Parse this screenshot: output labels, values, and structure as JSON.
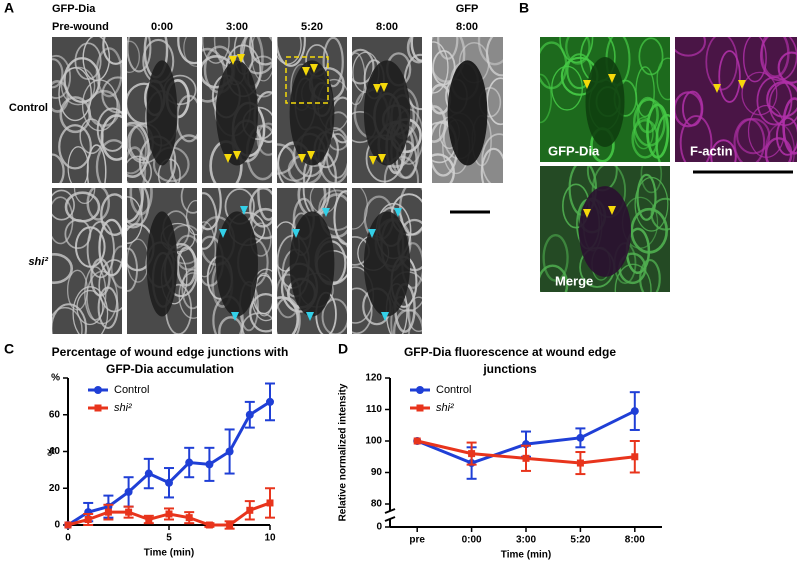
{
  "panel_a": {
    "letter": "A",
    "channel": "GFP-Dia",
    "columns": [
      "Pre-wound",
      "0:00",
      "3:00",
      "5:20",
      "8:00"
    ],
    "rows": [
      "Control",
      "shi²"
    ],
    "gfp_label": "GFP",
    "gfp_time": "8:00"
  },
  "panel_b": {
    "letter": "B",
    "labels": [
      "GFP-Dia",
      "F-actin",
      "Merge"
    ]
  },
  "chart_data": [
    {
      "type": "line",
      "panel_label": "C",
      "title": "Percentage of wound edge junctions with GFP-Dia accumulation",
      "x": [
        0,
        1,
        2,
        3,
        4,
        5,
        6,
        7,
        8,
        9,
        10
      ],
      "xlim": [
        0,
        10
      ],
      "xticks": [
        0,
        5,
        10
      ],
      "xlabel": "Time (min)",
      "ylabel": "%",
      "ylim": [
        0,
        80
      ],
      "yticks": [
        0,
        20,
        40,
        60,
        {
          "value": 80,
          "label": "%"
        }
      ],
      "legend": "upper left",
      "series": [
        {
          "name": "Control",
          "color": "#1f3fd6",
          "marker": "circle",
          "values": [
            0,
            7,
            10,
            18,
            28,
            23,
            34,
            33,
            40,
            60,
            67
          ],
          "errors": [
            0,
            5,
            6,
            8,
            8,
            8,
            8,
            9,
            12,
            7,
            10
          ]
        },
        {
          "name": "shi²",
          "color": "#e8341c",
          "marker": "square",
          "values": [
            0,
            3,
            7,
            7,
            3,
            6,
            4,
            0,
            0,
            8,
            12
          ],
          "errors": [
            0,
            3,
            4,
            3,
            2,
            3,
            3,
            1,
            2,
            5,
            8
          ]
        }
      ]
    },
    {
      "type": "line",
      "panel_label": "D",
      "title": "GFP-Dia fluorescence at wound edge junctions",
      "categories": [
        "pre",
        "0:00",
        "3:00",
        "5:20",
        "8:00"
      ],
      "xlabel": "Time (min)",
      "ylabel": "Relative normalized intensity",
      "ylim": [
        80,
        120
      ],
      "yticks": [
        0,
        80,
        90,
        100,
        110,
        120
      ],
      "axis_break": true,
      "legend": "upper left",
      "series": [
        {
          "name": "Control",
          "color": "#1f3fd6",
          "marker": "circle",
          "values": [
            100,
            93,
            99,
            101,
            109.5
          ],
          "errors": [
            0,
            5,
            4,
            3,
            6
          ]
        },
        {
          "name": "shi²",
          "color": "#e8341c",
          "marker": "square",
          "values": [
            100,
            96,
            94.5,
            93,
            95
          ],
          "errors": [
            0,
            3.5,
            4,
            3.5,
            5
          ]
        }
      ]
    }
  ]
}
